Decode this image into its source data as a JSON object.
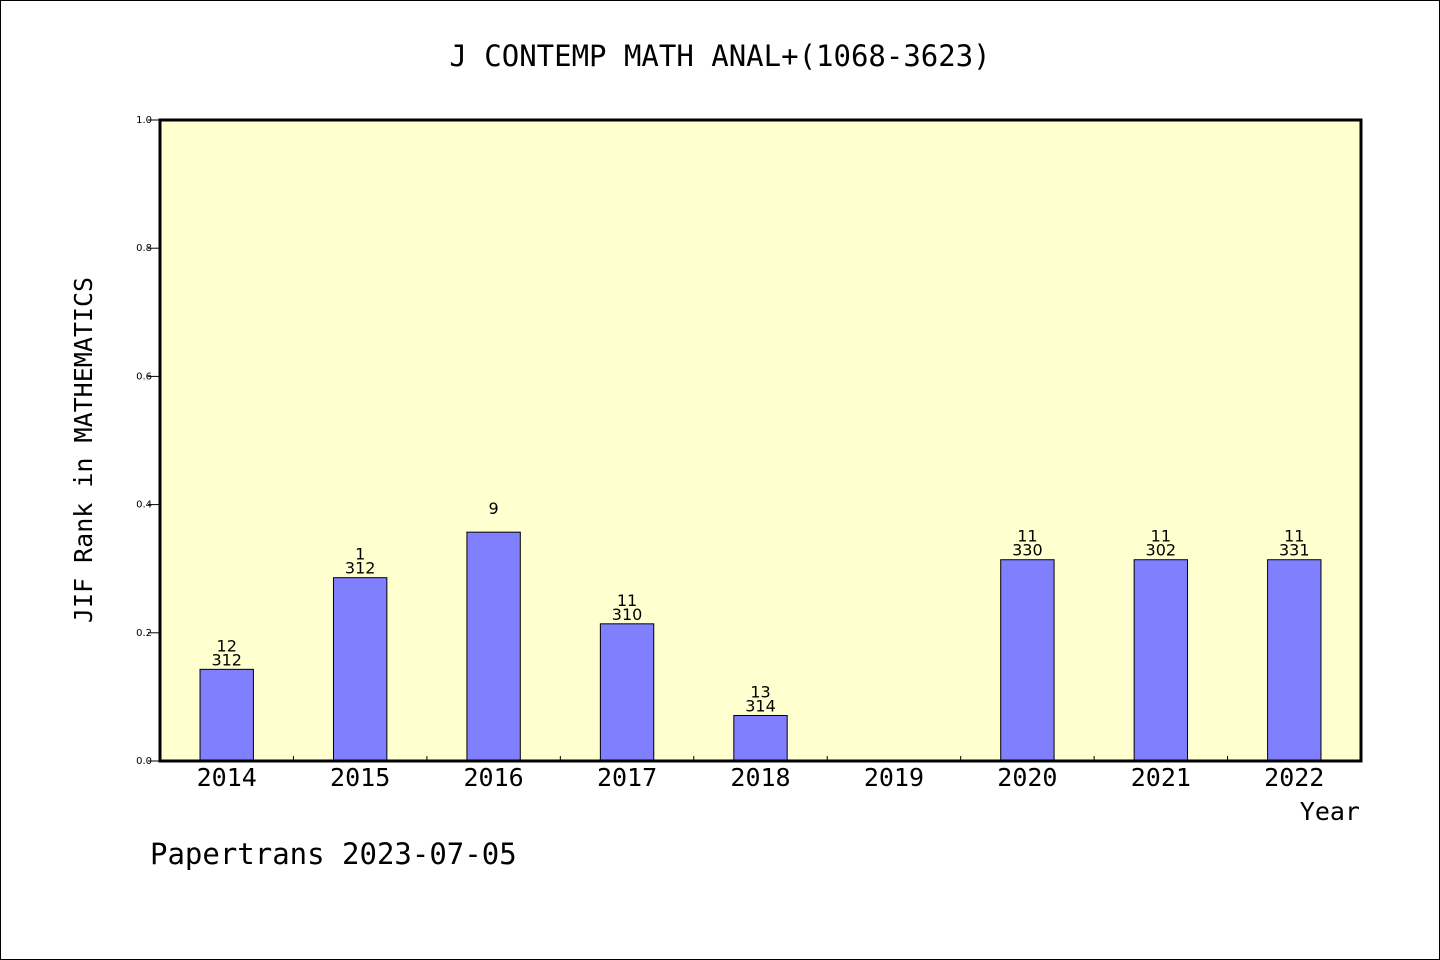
{
  "chart_data": {
    "type": "bar",
    "title": "J CONTEMP MATH ANAL+(1068-3623)",
    "xlabel": "Year",
    "ylabel": "JIF Rank in MATHEMATICS",
    "ylim": [
      0,
      1.0
    ],
    "yticks": [
      "0.0",
      "0.2",
      "0.4",
      "0.6",
      "0.8",
      "1.0"
    ],
    "categories": [
      "2014",
      "2015",
      "2016",
      "2017",
      "2018",
      "2019",
      "2020",
      "2021",
      "2022"
    ],
    "values": [
      0.143,
      0.286,
      0.357,
      0.214,
      0.071,
      null,
      0.314,
      0.314,
      0.314
    ],
    "label_top": [
      "12",
      "1",
      "9",
      "11",
      "13",
      "",
      "11",
      "11",
      "11"
    ],
    "label_bottom": [
      "312",
      "312",
      "",
      "310",
      "314",
      "",
      "330",
      "302",
      "331"
    ],
    "grid": false,
    "legend": "none",
    "colors": {
      "bar": "#8080ff",
      "plot_bg": "#ffffd0"
    }
  },
  "footer": {
    "text": "Papertrans 2023-07-05"
  }
}
